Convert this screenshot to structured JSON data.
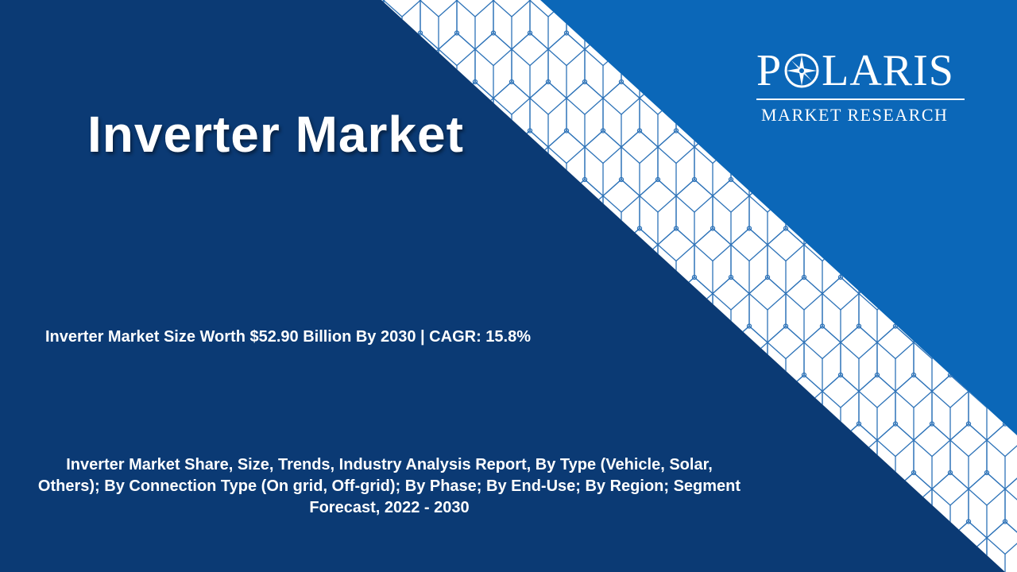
{
  "report": {
    "title": "Inverter Market",
    "headline": "Inverter Market Size Worth $52.90 Billion By 2030 | CAGR: 15.8%",
    "subtitle": "Inverter Market Share, Size, Trends, Industry Analysis Report, By Type (Vehicle, Solar, Others); By Connection Type (On grid, Off-grid); By Phase; By End-Use; By Region; Segment Forecast, 2022 - 2030"
  },
  "logo": {
    "word_before": "P",
    "word_after": "LARIS",
    "subtitle": "MARKET RESEARCH",
    "icon": "compass-star-icon"
  },
  "colors": {
    "dark_navy": "#0b3a74",
    "bright_blue": "#0b67b8",
    "stripe_white": "#ffffff",
    "pattern_line": "#2e73b8"
  }
}
